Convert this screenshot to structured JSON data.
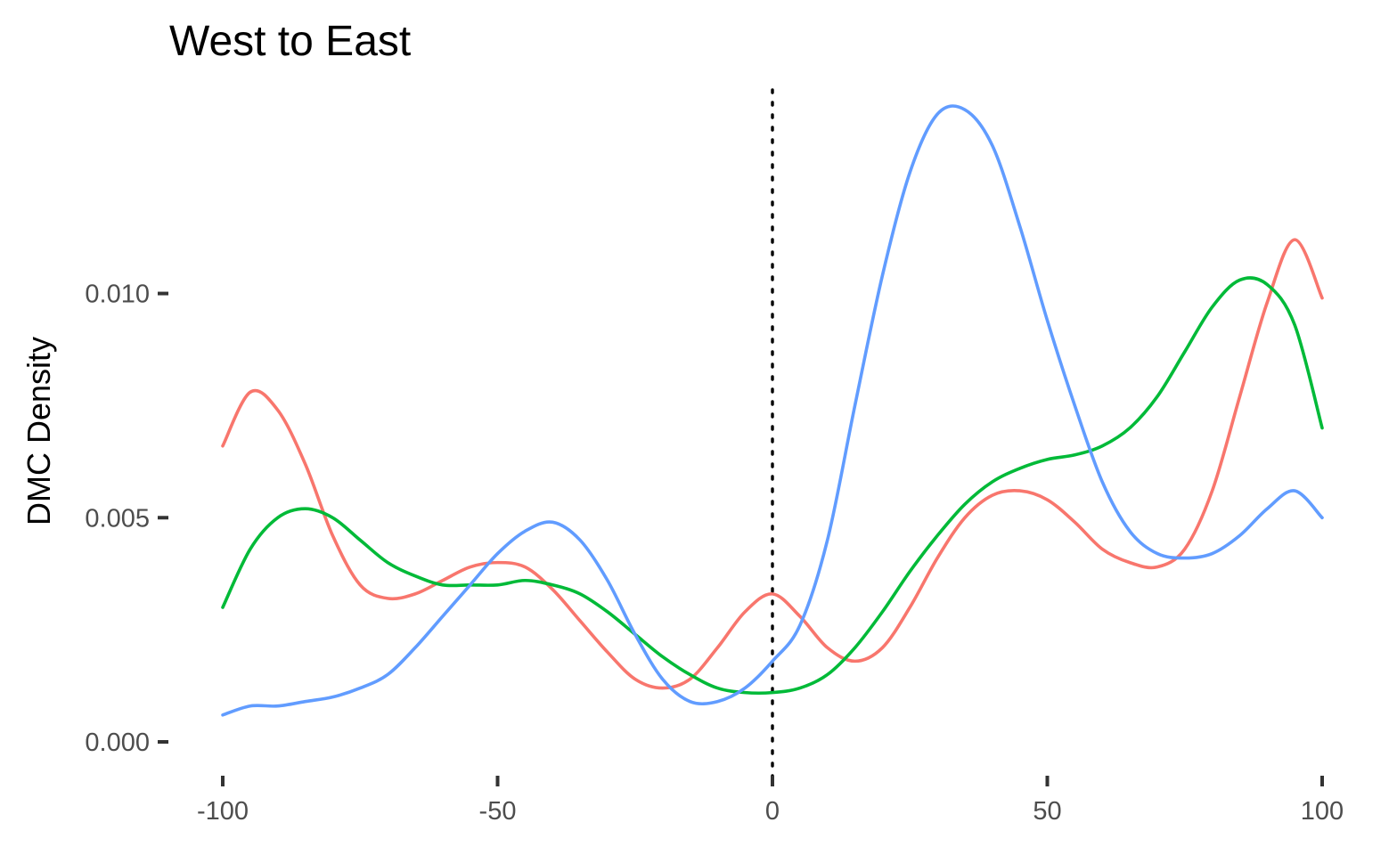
{
  "chart_data": {
    "type": "line",
    "title": "West to East",
    "xlabel": "",
    "ylabel": "DMC Density",
    "xlim": [
      -100,
      100
    ],
    "ylim": [
      0,
      0.0145
    ],
    "x_ticks": [
      -100,
      -50,
      0,
      50,
      100
    ],
    "x_tick_labels": [
      "-100",
      "-50",
      "0",
      "50",
      "100"
    ],
    "y_ticks": [
      0,
      0.005,
      0.01
    ],
    "y_tick_labels": [
      "0.000",
      "0.005",
      "0.010"
    ],
    "grid": false,
    "legend": "none",
    "reference_lines": [
      {
        "axis": "x",
        "value": 0,
        "style": "dotted",
        "color": "#000000"
      }
    ],
    "series": [
      {
        "color": "#F8766D",
        "x": [
          -100,
          -95,
          -90,
          -85,
          -80,
          -75,
          -70,
          -65,
          -60,
          -55,
          -50,
          -45,
          -40,
          -35,
          -30,
          -25,
          -20,
          -15,
          -10,
          -5,
          0,
          5,
          10,
          15,
          20,
          25,
          30,
          35,
          40,
          45,
          50,
          55,
          60,
          65,
          70,
          75,
          80,
          85,
          90,
          95,
          100
        ],
        "y": [
          0.0066,
          0.0078,
          0.0074,
          0.0062,
          0.0046,
          0.0035,
          0.0032,
          0.0033,
          0.0036,
          0.0039,
          0.004,
          0.0039,
          0.0034,
          0.0027,
          0.002,
          0.0014,
          0.0012,
          0.0014,
          0.0021,
          0.0029,
          0.0033,
          0.0028,
          0.0021,
          0.0018,
          0.0021,
          0.003,
          0.0041,
          0.005,
          0.0055,
          0.0056,
          0.0054,
          0.0049,
          0.0043,
          0.004,
          0.0039,
          0.0043,
          0.0056,
          0.0077,
          0.0098,
          0.0112,
          0.0099
        ]
      },
      {
        "color": "#00BA38",
        "x": [
          -100,
          -95,
          -90,
          -85,
          -80,
          -75,
          -70,
          -65,
          -60,
          -55,
          -50,
          -45,
          -40,
          -35,
          -30,
          -25,
          -20,
          -15,
          -10,
          -5,
          0,
          5,
          10,
          15,
          20,
          25,
          30,
          35,
          40,
          45,
          50,
          55,
          60,
          65,
          70,
          75,
          80,
          85,
          90,
          95,
          100
        ],
        "y": [
          0.003,
          0.0043,
          0.005,
          0.0052,
          0.005,
          0.0045,
          0.004,
          0.0037,
          0.0035,
          0.0035,
          0.0035,
          0.0036,
          0.0035,
          0.0033,
          0.0029,
          0.0024,
          0.0019,
          0.0015,
          0.0012,
          0.0011,
          0.0011,
          0.0012,
          0.0015,
          0.0021,
          0.0029,
          0.0038,
          0.0046,
          0.0053,
          0.0058,
          0.0061,
          0.0063,
          0.0064,
          0.0066,
          0.007,
          0.0077,
          0.0087,
          0.0097,
          0.0103,
          0.0102,
          0.0093,
          0.007
        ]
      },
      {
        "color": "#619CFF",
        "x": [
          -100,
          -95,
          -90,
          -85,
          -80,
          -75,
          -70,
          -65,
          -60,
          -55,
          -50,
          -45,
          -40,
          -35,
          -30,
          -25,
          -20,
          -15,
          -10,
          -5,
          0,
          5,
          10,
          15,
          20,
          25,
          30,
          35,
          40,
          45,
          50,
          55,
          60,
          65,
          70,
          75,
          80,
          85,
          90,
          95,
          100
        ],
        "y": [
          0.0006,
          0.0008,
          0.0008,
          0.0009,
          0.001,
          0.0012,
          0.0015,
          0.0021,
          0.0028,
          0.0035,
          0.0042,
          0.0047,
          0.0049,
          0.0045,
          0.0036,
          0.0024,
          0.0014,
          0.0009,
          0.0009,
          0.0012,
          0.0018,
          0.0026,
          0.0045,
          0.0075,
          0.0104,
          0.0127,
          0.014,
          0.0141,
          0.0133,
          0.0115,
          0.0094,
          0.0075,
          0.0058,
          0.0047,
          0.0042,
          0.0041,
          0.0042,
          0.0046,
          0.0052,
          0.0056,
          0.005
        ]
      }
    ]
  }
}
